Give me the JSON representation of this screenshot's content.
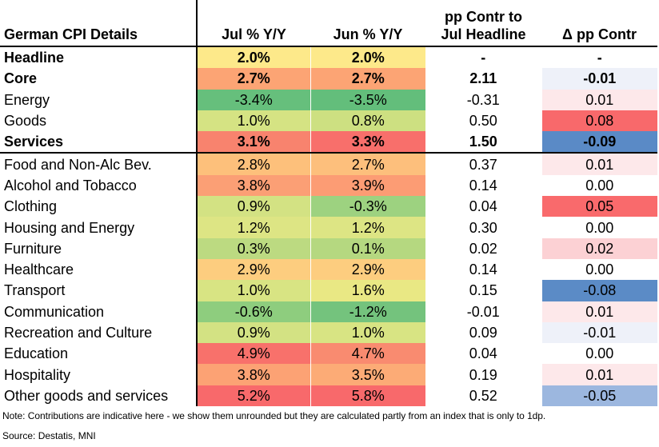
{
  "chart_data": {
    "type": "table",
    "title": "German CPI Details",
    "columns": [
      "German CPI Details",
      "Jul % Y/Y",
      "Jun % Y/Y",
      "pp Contr to Jul Headline",
      "Δ pp Contr"
    ],
    "column_headers": {
      "label": "German CPI Details",
      "jul": "Jul % Y/Y",
      "jun": "Jun % Y/Y",
      "contr_line1": "pp Contr to",
      "contr_line2": "Jul Headline",
      "delta": "Δ pp Contr"
    },
    "rows": [
      {
        "label": "Headline",
        "jul": "2.0%",
        "jun": "2.0%",
        "contr": "-",
        "delta": "-",
        "bold": true,
        "jul_color": "#fde98a",
        "jun_color": "#fde98a",
        "delta_color": "#ffffff"
      },
      {
        "label": "Core",
        "jul": "2.7%",
        "jun": "2.7%",
        "contr": "2.11",
        "delta": "-0.01",
        "bold": true,
        "jul_color": "#fca474",
        "jun_color": "#fca474",
        "delta_color": "#eef1f9"
      },
      {
        "label": "Energy",
        "jul": "-3.4%",
        "jun": "-3.5%",
        "contr": "-0.31",
        "delta": "0.01",
        "bold": false,
        "jul_color": "#66bf7c",
        "jun_color": "#63be7b",
        "delta_color": "#fde8ea"
      },
      {
        "label": "Goods",
        "jul": "1.0%",
        "jun": "0.8%",
        "contr": "0.50",
        "delta": "0.08",
        "bold": false,
        "jul_color": "#d5e383",
        "jun_color": "#cde081",
        "delta_color": "#f8696b"
      },
      {
        "label": "Services",
        "jul": "3.1%",
        "jun": "3.3%",
        "contr": "1.50",
        "delta": "-0.09",
        "bold": true,
        "jul_color": "#f8836e",
        "jun_color": "#f86f6b",
        "delta_color": "#5a8ac6",
        "separator": true
      },
      {
        "label": "Food and Non-Alc Bev.",
        "jul": "2.8%",
        "jun": "2.7%",
        "contr": "0.37",
        "delta": "0.01",
        "bold": false,
        "jul_color": "#fdc07b",
        "jun_color": "#fdbf7c",
        "delta_color": "#fde8ea"
      },
      {
        "label": "Alcohol and Tobacco",
        "jul": "3.8%",
        "jun": "3.9%",
        "contr": "0.14",
        "delta": "0.00",
        "bold": false,
        "jul_color": "#fb9f75",
        "jun_color": "#fc9c74",
        "delta_color": "#ffffff"
      },
      {
        "label": "Clothing",
        "jul": "0.9%",
        "jun": "-0.3%",
        "contr": "0.04",
        "delta": "0.05",
        "bold": false,
        "jul_color": "#d3e283",
        "jun_color": "#9dd280",
        "delta_color": "#f96a6c"
      },
      {
        "label": "Housing and Energy",
        "jul": "1.2%",
        "jun": "1.2%",
        "contr": "0.30",
        "delta": "0.00",
        "bold": false,
        "jul_color": "#dde584",
        "jun_color": "#dde584",
        "delta_color": "#ffffff"
      },
      {
        "label": "Furniture",
        "jul": "0.3%",
        "jun": "0.1%",
        "contr": "0.02",
        "delta": "0.02",
        "bold": false,
        "jul_color": "#bcda81",
        "jun_color": "#b5d880",
        "delta_color": "#fcd1d4"
      },
      {
        "label": "Healthcare",
        "jul": "2.9%",
        "jun": "2.9%",
        "contr": "0.14",
        "delta": "0.00",
        "bold": false,
        "jul_color": "#fdcd7f",
        "jun_color": "#fdcd7f",
        "delta_color": "#ffffff"
      },
      {
        "label": "Transport",
        "jul": "1.0%",
        "jun": "1.6%",
        "contr": "0.15",
        "delta": "-0.08",
        "bold": false,
        "jul_color": "#d8e483",
        "jun_color": "#e9e884",
        "delta_color": "#5b8bc6"
      },
      {
        "label": "Communication",
        "jul": "-0.6%",
        "jun": "-1.2%",
        "contr": "-0.01",
        "delta": "0.01",
        "bold": false,
        "jul_color": "#8ecd7e",
        "jun_color": "#74c37d",
        "delta_color": "#fde8ea"
      },
      {
        "label": "Recreation and Culture",
        "jul": "0.9%",
        "jun": "1.0%",
        "contr": "0.09",
        "delta": "-0.01",
        "bold": false,
        "jul_color": "#d3e283",
        "jun_color": "#d8e483",
        "delta_color": "#eef1f9"
      },
      {
        "label": "Education",
        "jul": "4.9%",
        "jun": "4.7%",
        "contr": "0.04",
        "delta": "0.00",
        "bold": false,
        "jul_color": "#f8716b",
        "jun_color": "#f98b70",
        "delta_color": "#ffffff"
      },
      {
        "label": "Hospitality",
        "jul": "3.8%",
        "jun": "3.5%",
        "contr": "0.19",
        "delta": "0.01",
        "bold": false,
        "jul_color": "#fca274",
        "jun_color": "#fcab76",
        "delta_color": "#fde8ea"
      },
      {
        "label": "Other goods and services",
        "jul": "5.2%",
        "jun": "5.8%",
        "contr": "0.52",
        "delta": "-0.05",
        "bold": false,
        "jul_color": "#f8696b",
        "jun_color": "#f8696b",
        "delta_color": "#9cb7df"
      }
    ]
  },
  "footnotes": {
    "note": "Note: Contributions are indicative here - we show them unrounded but they are calculated partly from an index that is only to 1dp.",
    "source": "Source: Destatis, MNI"
  }
}
